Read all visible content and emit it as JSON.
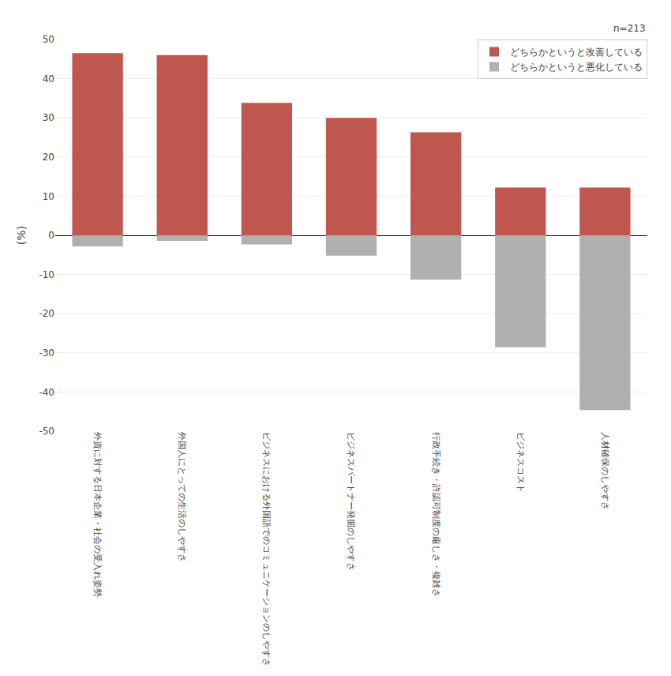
{
  "chart_data": {
    "type": "bar",
    "categories": [
      "外資に対する日本企業・社会の受入れ姿勢",
      "外国人にとっての生活のしやすさ",
      "ビジネスにおける外国語でのコミュニケーションのしやすさ",
      "ビジネスパートナー発掘のしやすさ",
      "行政手続き・許認可制度の厳しさ・複雑さ",
      "ビジネスコスト",
      "人材確保のしやすさ"
    ],
    "series": [
      {
        "name": "どちらかというと改善している",
        "color": "#c0574f",
        "values": [
          46.5,
          46.0,
          33.8,
          30.0,
          26.3,
          12.2,
          12.2
        ]
      },
      {
        "name": "どちらかというと悪化している",
        "color": "#b0b0b0",
        "values": [
          -2.8,
          -1.4,
          -2.3,
          -5.2,
          -11.3,
          -28.6,
          -44.6
        ]
      }
    ],
    "ylabel": "(%)",
    "annotations": [
      "n=213"
    ],
    "ylim": [
      -50,
      50
    ],
    "yticks": [
      -50,
      -40,
      -30,
      -20,
      -10,
      0,
      10,
      20,
      30,
      40,
      50
    ],
    "grid": true,
    "legend": "upper right"
  }
}
